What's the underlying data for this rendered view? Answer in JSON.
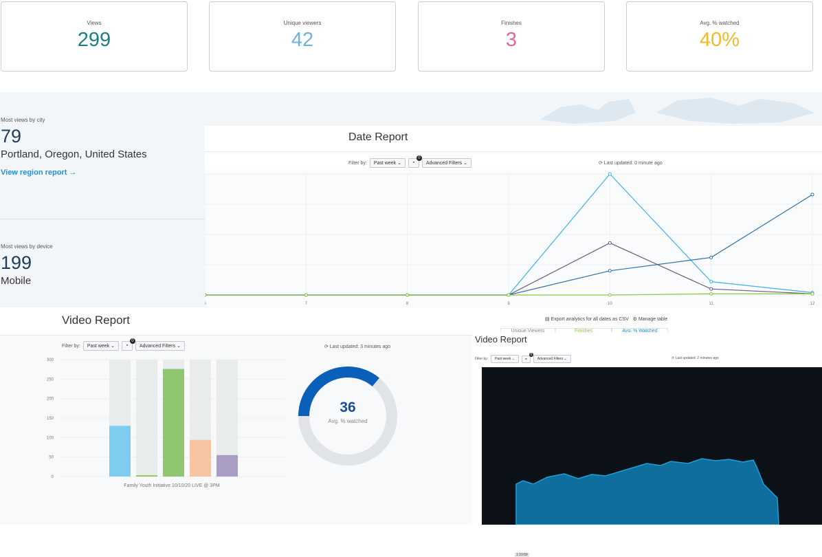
{
  "stats": [
    {
      "label": "Views",
      "value": "299",
      "color": "#1b7f83"
    },
    {
      "label": "Unique viewers",
      "value": "42",
      "color": "#6fb3d9"
    },
    {
      "label": "Finishes",
      "value": "3",
      "color": "#e2669b"
    },
    {
      "label": "Avg. % watched",
      "value": "40%",
      "color": "#f3b92b"
    }
  ],
  "city": {
    "caption": "Most views by city",
    "count": "79",
    "name": "Portland, Oregon, United States",
    "link": "View region report →"
  },
  "device": {
    "caption": "Most views by device",
    "count": "199",
    "name": "Mobile"
  },
  "date_report": {
    "title": "Date Report",
    "filter_label": "Filter by:",
    "filter_value": "Past week ⌄",
    "camera_badge": "0",
    "advanced_filters": "Advanced Filters ⌄",
    "updated": "⟳ Last updated: 0 minute ago",
    "export": "Export analytics for all dates as CSV",
    "manage": "⚙ Manage table",
    "tabs": [
      "Unique Viewers",
      "Finishes",
      "Avg. % Watched"
    ]
  },
  "video_report_left": {
    "title": "Video Report",
    "filter_label": "Filter by:",
    "filter_value": "Past week ⌄",
    "camera_badge": "0",
    "advanced_filters": "Advanced Filters ⌄",
    "updated": "⟳ Last updated: 3 minutes ago",
    "donut_value": "36",
    "donut_label": "Avg. % watched",
    "xlabel": "Family Youth Initiative 10/10/20 LIVE @ 3PM"
  },
  "video_report_right": {
    "title": "Video Report",
    "filter_label": "Filter by:",
    "filter_value": "Past week ⌄",
    "camera_badge": "0",
    "advanced_filters": "Advanced Filters ⌄",
    "updated": "⟳ Last updated: 2 minutes ago",
    "time": "1:10:59"
  },
  "chart_data": [
    {
      "type": "line",
      "x": [
        "6",
        "7",
        "8",
        "9",
        "10",
        "11",
        "12"
      ],
      "series": [
        {
          "color": "#3bb4e0",
          "values": [
            0,
            0,
            0,
            0,
            100,
            11,
            2
          ]
        },
        {
          "color": "#6b5a80",
          "values": [
            0,
            0,
            0,
            0,
            43,
            5,
            1
          ]
        },
        {
          "color": "#2e6fa3",
          "values": [
            0,
            0,
            0,
            0,
            20,
            31,
            83
          ]
        },
        {
          "color": "#8cc63f",
          "values": [
            0,
            0,
            0,
            0,
            0,
            1,
            1
          ]
        }
      ]
    },
    {
      "type": "bar",
      "y_ticks": [
        "300",
        "250",
        "200",
        "150",
        "100",
        "50",
        "0"
      ],
      "ylim": [
        0,
        300
      ],
      "values": [
        130,
        3,
        276,
        94,
        55
      ],
      "colors": [
        "#7ccdf0",
        "#8cc63f",
        "#8fc672",
        "#f4c5a0",
        "#a99dc4"
      ],
      "xlabel": "Family Youth Initiative 10/10/20 LIVE @ 3PM"
    },
    {
      "type": "pie",
      "values": [
        36,
        64
      ],
      "colors": [
        "#0a5fb8",
        "#e0e4e6"
      ]
    }
  ],
  "colors": {
    "link": "#1f8fd6",
    "accent": "#0a5fb8"
  }
}
